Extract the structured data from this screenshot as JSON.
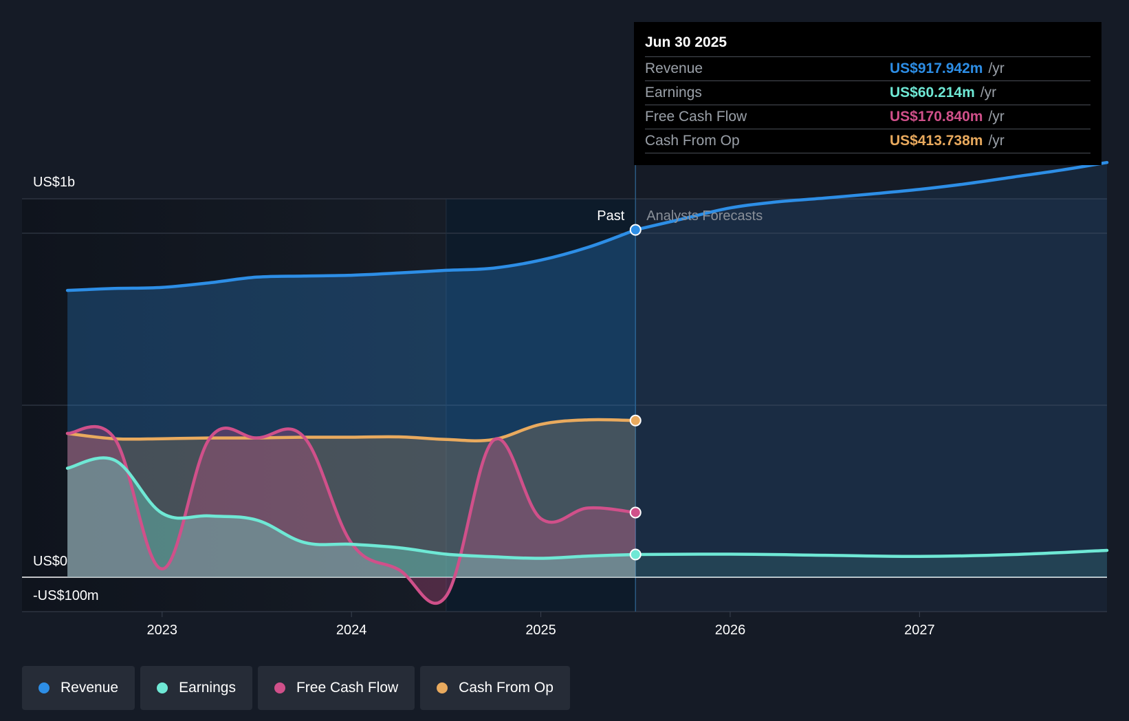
{
  "chart_data": {
    "type": "line",
    "title": "",
    "y_axis": {
      "top_label": "US$1b",
      "zero_label": "US$0",
      "bottom_label": "-US$100m",
      "ylim": [
        -100,
        1100
      ]
    },
    "x_axis": {
      "ticks": [
        {
          "label": "2023",
          "x": 2023.0
        },
        {
          "label": "2024",
          "x": 2024.0
        },
        {
          "label": "2025",
          "x": 2025.0
        },
        {
          "label": "2026",
          "x": 2026.0
        },
        {
          "label": "2027",
          "x": 2027.0
        }
      ],
      "xlim": [
        2022.26,
        2027.99
      ]
    },
    "regions": {
      "past_label": "Past",
      "forecast_label": "Analysts Forecasts",
      "highlight_start": 2024.5,
      "divider": 2025.5
    },
    "series": [
      {
        "name": "Revenue",
        "color": "#2d8ee6",
        "fill": true,
        "points": [
          [
            2022.5,
            758
          ],
          [
            2022.75,
            763
          ],
          [
            2023.0,
            766
          ],
          [
            2023.25,
            778
          ],
          [
            2023.5,
            793
          ],
          [
            2023.75,
            796
          ],
          [
            2024.0,
            798
          ],
          [
            2024.25,
            804
          ],
          [
            2024.5,
            811
          ],
          [
            2024.75,
            817
          ],
          [
            2025.0,
            838
          ],
          [
            2025.25,
            872
          ],
          [
            2025.5,
            918
          ]
        ],
        "forecast": [
          [
            2025.5,
            918
          ],
          [
            2025.75,
            947
          ],
          [
            2026.0,
            976
          ],
          [
            2026.25,
            992
          ],
          [
            2026.5,
            1002
          ],
          [
            2026.75,
            1013
          ],
          [
            2027.0,
            1025
          ],
          [
            2027.25,
            1040
          ],
          [
            2027.5,
            1058
          ],
          [
            2027.75,
            1076
          ],
          [
            2027.99,
            1096
          ]
        ]
      },
      {
        "name": "Earnings",
        "color": "#6fe8d5",
        "fill": true,
        "points": [
          [
            2022.5,
            288
          ],
          [
            2022.75,
            309
          ],
          [
            2023.0,
            169
          ],
          [
            2023.25,
            162
          ],
          [
            2023.5,
            151
          ],
          [
            2023.75,
            92
          ],
          [
            2024.0,
            87
          ],
          [
            2024.25,
            78
          ],
          [
            2024.5,
            61
          ],
          [
            2024.75,
            54
          ],
          [
            2025.0,
            50
          ],
          [
            2025.25,
            56
          ],
          [
            2025.5,
            60
          ]
        ],
        "forecast": [
          [
            2025.5,
            60
          ],
          [
            2026.0,
            61
          ],
          [
            2026.5,
            58
          ],
          [
            2027.0,
            55
          ],
          [
            2027.5,
            60
          ],
          [
            2027.99,
            71
          ]
        ]
      },
      {
        "name": "Free Cash Flow",
        "color": "#d0508a",
        "fill": true,
        "points": [
          [
            2022.5,
            380
          ],
          [
            2022.75,
            366
          ],
          [
            2023.0,
            22
          ],
          [
            2023.25,
            366
          ],
          [
            2023.5,
            368
          ],
          [
            2023.75,
            370
          ],
          [
            2024.0,
            90
          ],
          [
            2024.25,
            20
          ],
          [
            2024.5,
            -50
          ],
          [
            2024.75,
            362
          ],
          [
            2025.0,
            155
          ],
          [
            2025.25,
            183
          ],
          [
            2025.5,
            171
          ]
        ],
        "forecast": []
      },
      {
        "name": "Cash From Op",
        "color": "#e9aa5e",
        "fill": true,
        "points": [
          [
            2022.5,
            380
          ],
          [
            2022.75,
            366
          ],
          [
            2023.0,
            366
          ],
          [
            2023.25,
            368
          ],
          [
            2023.5,
            368
          ],
          [
            2023.75,
            370
          ],
          [
            2024.0,
            370
          ],
          [
            2024.25,
            371
          ],
          [
            2024.5,
            364
          ],
          [
            2024.75,
            364
          ],
          [
            2025.0,
            404
          ],
          [
            2025.25,
            416
          ],
          [
            2025.5,
            414
          ]
        ],
        "forecast": []
      }
    ],
    "tooltip": {
      "date": "Jun 30 2025",
      "rows": [
        {
          "name": "Revenue",
          "value": "US$917.942m",
          "unit": "/yr",
          "color": "#2d8ee6"
        },
        {
          "name": "Earnings",
          "value": "US$60.214m",
          "unit": "/yr",
          "color": "#6fe8d5"
        },
        {
          "name": "Free Cash Flow",
          "value": "US$170.840m",
          "unit": "/yr",
          "color": "#d0508a"
        },
        {
          "name": "Cash From Op",
          "value": "US$413.738m",
          "unit": "/yr",
          "color": "#e9aa5e"
        }
      ]
    }
  },
  "legend": [
    {
      "label": "Revenue",
      "color": "#2d8ee6"
    },
    {
      "label": "Earnings",
      "color": "#6fe8d5"
    },
    {
      "label": "Free Cash Flow",
      "color": "#d0508a"
    },
    {
      "label": "Cash From Op",
      "color": "#e9aa5e"
    }
  ]
}
